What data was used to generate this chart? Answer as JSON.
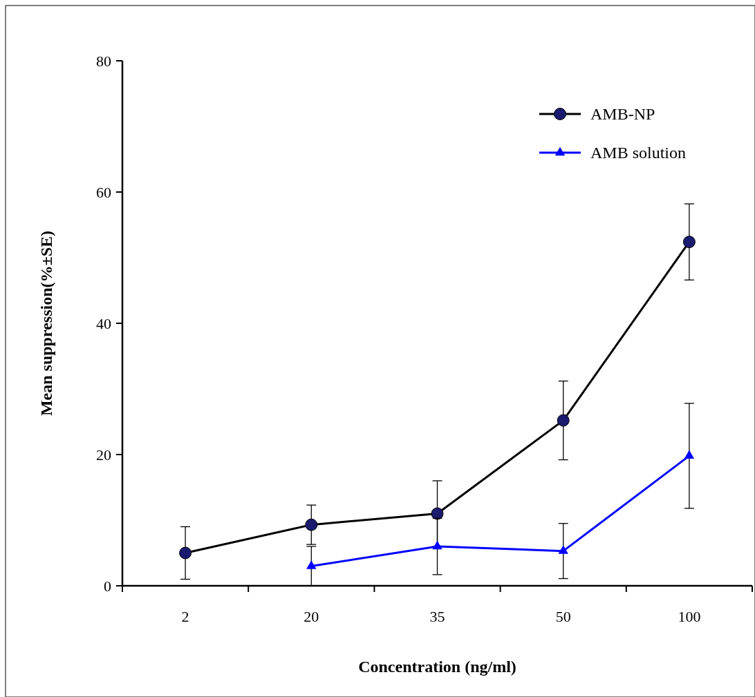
{
  "chart_data": {
    "type": "line",
    "xlabel": "Concentration (ng/ml)",
    "ylabel": "Mean suppression(%±SE)",
    "categories": [
      "2",
      "20",
      "35",
      "50",
      "100"
    ],
    "ylim": [
      0,
      80
    ],
    "yticks": [
      0,
      20,
      40,
      60,
      80
    ],
    "grid": false,
    "legend": "top right",
    "series": [
      {
        "name": "AMB-NP",
        "color": "#000000",
        "marker": "circle",
        "values": [
          5,
          9.3,
          11,
          25.2,
          52.4
        ],
        "errors": [
          4,
          3,
          5,
          6,
          5.8
        ]
      },
      {
        "name": "AMB solution",
        "color": "#0000ff",
        "marker": "triangle",
        "values": [
          null,
          3,
          6,
          5.3,
          19.8
        ],
        "errors": [
          null,
          3,
          4.3,
          4.2,
          8
        ]
      }
    ]
  }
}
